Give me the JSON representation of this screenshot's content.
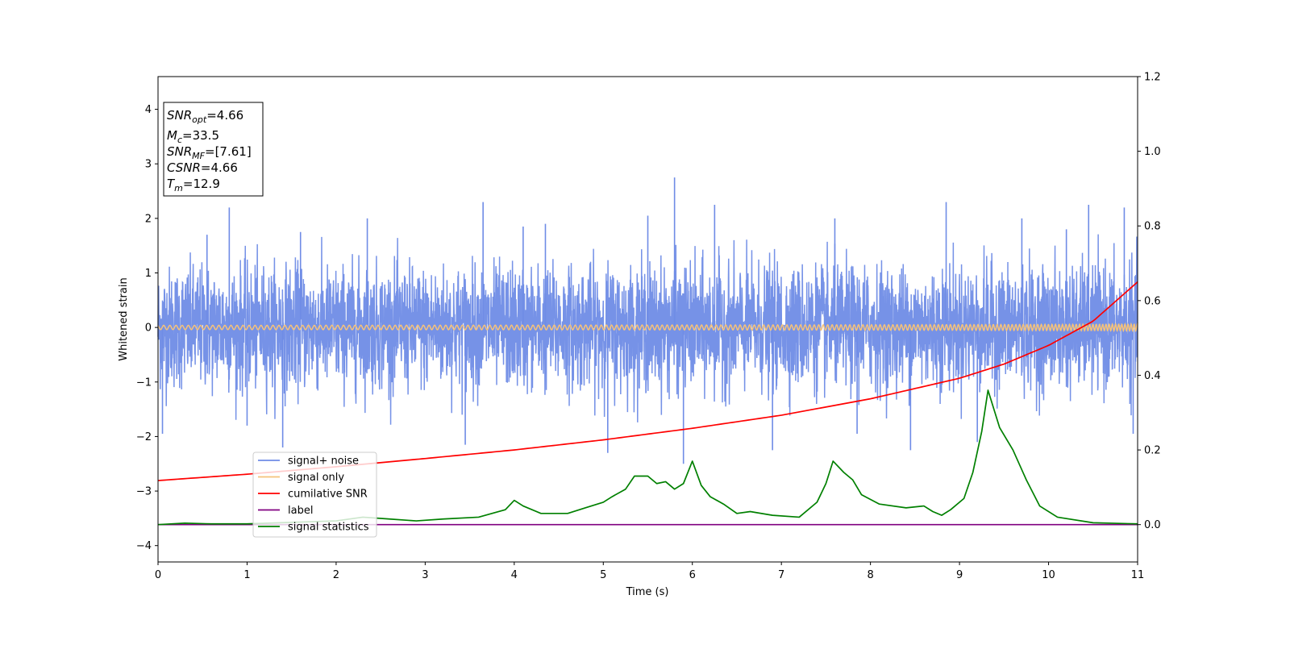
{
  "chart_data": {
    "type": "line",
    "title": "",
    "xlabel": "Time (s)",
    "ylabel": "Whitened strain",
    "xlim": [
      0,
      11
    ],
    "ylim": [
      -4.3,
      4.6
    ],
    "y2lim": [
      -0.1,
      1.2
    ],
    "x_ticks": [
      "0",
      "1",
      "2",
      "3",
      "4",
      "5",
      "6",
      "7",
      "8",
      "9",
      "10",
      "11"
    ],
    "y_ticks": [
      "−4",
      "−3",
      "−2",
      "−1",
      "0",
      "1",
      "2",
      "3",
      "4"
    ],
    "y2_ticks": [
      "0.0",
      "0.2",
      "0.4",
      "0.6",
      "0.8",
      "1.0",
      "1.2"
    ],
    "grid": false,
    "legend": {
      "position": "lower-left",
      "entries": [
        {
          "label": "signal+ noise",
          "color": "#6f8ce6"
        },
        {
          "label": "signal only",
          "color": "#f5c27a"
        },
        {
          "label": "cumilative SNR",
          "color": "#ff0000"
        },
        {
          "label": "label",
          "color": "#800080"
        },
        {
          "label": "signal statistics",
          "color": "#008000"
        }
      ]
    },
    "annotation": [
      {
        "name": "SNR",
        "sub": "opt",
        "value": "=4.66"
      },
      {
        "name": "M",
        "sub": "c",
        "value": "=33.5"
      },
      {
        "name": "SNR",
        "sub": "MF",
        "value": "=[7.61]"
      },
      {
        "name": "CSNR",
        "sub": "",
        "value": "=4.66"
      },
      {
        "name": "T",
        "sub": "m",
        "value": "=12.9"
      }
    ],
    "series": [
      {
        "name": "signal+ noise",
        "axis": "left",
        "color": "#6f8ce6",
        "style": "noise",
        "amplitude": 0.55,
        "samples": 4400,
        "peaks": [
          [
            0.05,
            -1.95
          ],
          [
            0.55,
            1.7
          ],
          [
            0.8,
            2.2
          ],
          [
            1.0,
            -1.8
          ],
          [
            1.4,
            -2.2
          ],
          [
            1.6,
            1.75
          ],
          [
            2.35,
            2.0
          ],
          [
            3.45,
            -2.15
          ],
          [
            3.65,
            2.3
          ],
          [
            4.1,
            1.85
          ],
          [
            4.35,
            1.9
          ],
          [
            5.05,
            -2.3
          ],
          [
            5.5,
            2.05
          ],
          [
            5.8,
            2.75
          ],
          [
            5.9,
            -2.5
          ],
          [
            6.25,
            2.25
          ],
          [
            6.9,
            -2.25
          ],
          [
            7.6,
            2.0
          ],
          [
            7.85,
            -1.95
          ],
          [
            8.45,
            -2.25
          ],
          [
            8.85,
            2.3
          ],
          [
            9.2,
            -2.1
          ],
          [
            9.7,
            2.0
          ],
          [
            10.2,
            1.8
          ],
          [
            10.45,
            2.25
          ],
          [
            10.85,
            2.2
          ],
          [
            10.95,
            -1.95
          ]
        ]
      },
      {
        "name": "signal only",
        "axis": "left",
        "color": "#f5c27a",
        "style": "chirp",
        "t_merge": 12.9,
        "amplitude_end": 0.07
      },
      {
        "name": "cumilative SNR",
        "axis": "right",
        "color": "#ff0000",
        "x": [
          0,
          1,
          2,
          3,
          4,
          5,
          6,
          7,
          8,
          9,
          9.5,
          10,
          10.5,
          11
        ],
        "y": [
          0.118,
          0.135,
          0.155,
          0.177,
          0.2,
          0.227,
          0.258,
          0.293,
          0.337,
          0.392,
          0.43,
          0.48,
          0.545,
          0.65
        ]
      },
      {
        "name": "label",
        "axis": "right",
        "color": "#800080",
        "x": [
          0,
          11
        ],
        "y": [
          0.0,
          0.0
        ]
      },
      {
        "name": "signal statistics",
        "axis": "right",
        "color": "#008000",
        "x": [
          0,
          0.3,
          0.6,
          1.0,
          1.5,
          2.0,
          2.3,
          2.6,
          2.9,
          3.2,
          3.6,
          3.9,
          4.0,
          4.1,
          4.3,
          4.6,
          4.8,
          5.0,
          5.1,
          5.25,
          5.35,
          5.5,
          5.6,
          5.7,
          5.8,
          5.9,
          6.0,
          6.1,
          6.2,
          6.35,
          6.5,
          6.65,
          6.9,
          7.2,
          7.4,
          7.5,
          7.58,
          7.7,
          7.8,
          7.9,
          8.1,
          8.4,
          8.6,
          8.7,
          8.8,
          8.9,
          9.05,
          9.15,
          9.25,
          9.32,
          9.45,
          9.6,
          9.75,
          9.9,
          10.1,
          10.5,
          11.0
        ],
        "y": [
          0.0,
          0.004,
          0.002,
          0.002,
          0.006,
          0.01,
          0.02,
          0.015,
          0.01,
          0.015,
          0.02,
          0.04,
          0.065,
          0.05,
          0.03,
          0.03,
          0.045,
          0.06,
          0.075,
          0.095,
          0.13,
          0.13,
          0.11,
          0.115,
          0.095,
          0.11,
          0.17,
          0.105,
          0.075,
          0.055,
          0.03,
          0.035,
          0.025,
          0.02,
          0.06,
          0.11,
          0.17,
          0.14,
          0.12,
          0.08,
          0.055,
          0.045,
          0.05,
          0.035,
          0.025,
          0.04,
          0.07,
          0.14,
          0.25,
          0.36,
          0.26,
          0.2,
          0.12,
          0.05,
          0.02,
          0.005,
          0.002
        ]
      }
    ]
  }
}
